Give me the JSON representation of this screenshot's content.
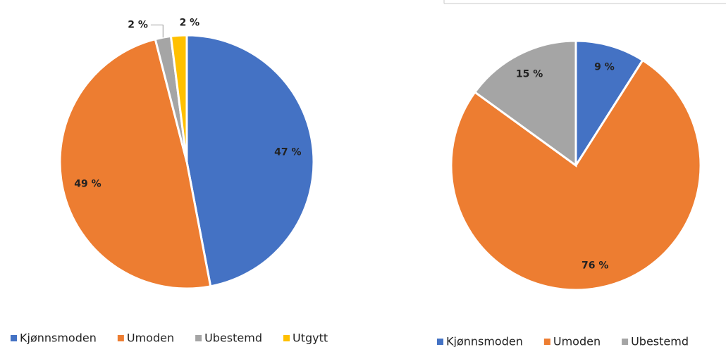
{
  "chart_data": [
    {
      "type": "pie",
      "categories": [
        "Kjønnsmoden",
        "Umoden",
        "Ubestemd",
        "Utgytt"
      ],
      "values": [
        47,
        49,
        2,
        2
      ],
      "value_labels": [
        "47 %",
        "49 %",
        "2 %",
        "2 %"
      ],
      "colors": [
        "#4472c4",
        "#ed7d31",
        "#a5a5a5",
        "#ffc000"
      ],
      "legend": "bottom"
    },
    {
      "type": "pie",
      "categories": [
        "Kjønnsmoden",
        "Umoden",
        "Ubestemd"
      ],
      "values": [
        9,
        76,
        15
      ],
      "value_labels": [
        "9 %",
        "76 %",
        "15 %"
      ],
      "colors": [
        "#4472c4",
        "#ed7d31",
        "#a5a5a5"
      ],
      "legend": "bottom"
    }
  ]
}
